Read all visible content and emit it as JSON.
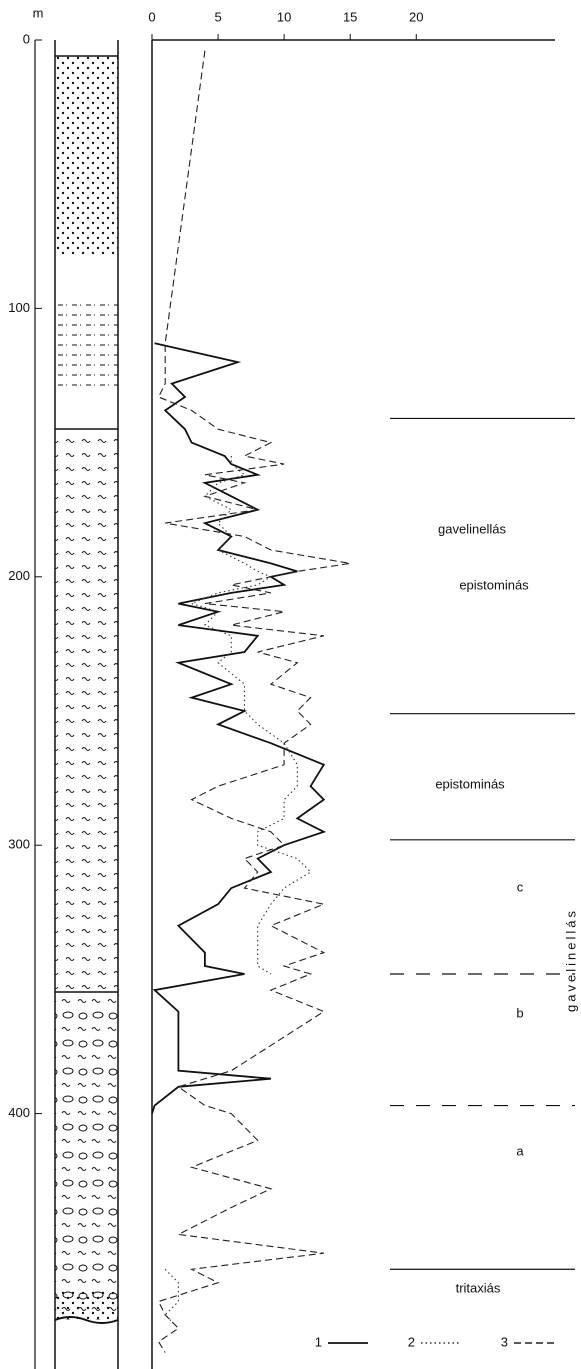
{
  "chart_data": {
    "type": "line",
    "x_label": "m",
    "xlim": [
      0,
      495
    ],
    "xticks": [
      0,
      100,
      200,
      300,
      400
    ],
    "ylim": [
      0,
      30.5
    ],
    "yticks": [
      0,
      5,
      10,
      15,
      20
    ],
    "x": [
      4,
      113,
      120,
      128,
      133,
      138,
      145,
      150,
      155,
      158,
      162,
      165,
      170,
      175,
      180,
      185,
      190,
      195,
      198,
      200,
      203,
      206,
      210,
      213,
      218,
      222,
      228,
      232,
      240,
      245,
      250,
      255,
      262,
      270,
      278,
      283,
      290,
      295,
      300,
      305,
      310,
      316,
      322,
      330,
      340,
      345,
      348,
      354,
      362,
      384,
      387,
      390,
      397,
      400,
      410,
      420,
      428,
      435,
      445,
      452,
      458,
      463,
      470,
      475,
      480,
      485,
      489
    ],
    "series": [
      {
        "name": "1",
        "color": "#111",
        "dash": "solid",
        "values": [
          null,
          0.2,
          6.5,
          1.5,
          2.5,
          1,
          2.5,
          3,
          5.5,
          6,
          8,
          4,
          6,
          8,
          4,
          6,
          5,
          9,
          11,
          9,
          10,
          6,
          2,
          5,
          2,
          8,
          7,
          2,
          6,
          3,
          7,
          5,
          9,
          13,
          12,
          13,
          11,
          13,
          10,
          8,
          9,
          6,
          5,
          2,
          4,
          4,
          7,
          0.2,
          2,
          2,
          9,
          2,
          0.2,
          0,
          null,
          null,
          null,
          null,
          null,
          null,
          null,
          null,
          null,
          null,
          null,
          null,
          null
        ]
      },
      {
        "name": "2",
        "color": "#333",
        "dash": "dotted",
        "values": [
          null,
          null,
          null,
          null,
          null,
          null,
          null,
          null,
          6,
          6,
          7,
          5,
          4,
          6,
          5,
          6,
          5,
          7,
          8,
          9,
          8,
          5,
          3,
          5,
          4,
          6,
          6,
          5,
          7,
          7,
          7,
          8,
          10,
          11,
          11,
          10,
          10,
          8,
          8,
          11,
          12,
          10,
          9,
          8,
          8,
          8,
          9,
          null,
          null,
          null,
          null,
          null,
          null,
          null,
          null,
          null,
          null,
          null,
          null,
          null,
          1,
          2,
          2,
          1,
          2,
          null,
          null
        ]
      },
      {
        "name": "3",
        "color": "#222",
        "dash": "dashed",
        "values": [
          4,
          1,
          1,
          1,
          0.5,
          3,
          5,
          9,
          7,
          10,
          4,
          7,
          4,
          8,
          1,
          7,
          9,
          15,
          11,
          9,
          6,
          9,
          4,
          10,
          6,
          13,
          8,
          11,
          9,
          12,
          11,
          12,
          10,
          10,
          5,
          3,
          6,
          9,
          10,
          7,
          8,
          7,
          13,
          9,
          13,
          10,
          12,
          9,
          13,
          6,
          4,
          2,
          4,
          6,
          8,
          3,
          9,
          6,
          2,
          13,
          3,
          5,
          0.5,
          1,
          2,
          0.5,
          1
        ]
      }
    ],
    "boundaries": [
      {
        "depth": 141,
        "style": "solid"
      },
      {
        "depth": 251,
        "style": "solid"
      },
      {
        "depth": 298,
        "style": "solid"
      },
      {
        "depth": 348,
        "style": "dashed"
      },
      {
        "depth": 397,
        "style": "dashed"
      },
      {
        "depth": 458,
        "style": "solid"
      }
    ],
    "annotations": [
      "gavelinellás",
      "epistominás",
      "epistominás",
      "c",
      "b",
      "a",
      "tritaxiás",
      "gavelinellás"
    ]
  }
}
